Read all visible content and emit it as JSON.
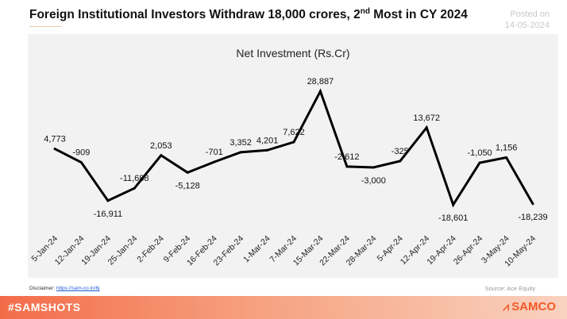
{
  "header": {
    "title_main": "Foreign Institutional Investors Withdraw 18,000 crores, 2",
    "title_sup": "nd",
    "title_end": " Most in CY 2024",
    "posted_label": "Posted on",
    "posted_date": "14-05-2024"
  },
  "chart_data": {
    "type": "line",
    "title": "Net Investment (Rs.Cr)",
    "categories": [
      "5-Jan-24",
      "12-Jan-24",
      "19-Jan-24",
      "25-Jan-24",
      "2-Feb-24",
      "9-Feb-24",
      "16-Feb-24",
      "23-Feb-24",
      "1-Mar-24",
      "7-Mar-24",
      "15-Mar-24",
      "22-Mar-24",
      "28-Mar-24",
      "5-Apr-24",
      "12-Apr-24",
      "19-Apr-24",
      "26-Apr-24",
      "3-May-24",
      "10-May-24"
    ],
    "values": [
      4773,
      -909,
      -16911,
      -11688,
      2053,
      -5128,
      -701,
      3352,
      4201,
      7622,
      28887,
      -2612,
      -3000,
      -325,
      13672,
      -18601,
      -1050,
      1156,
      -18239
    ],
    "data_labels": [
      "4,773",
      "-909",
      "-16,911",
      "-11,688",
      "2,053",
      "-5,128",
      "-701",
      "3,352",
      "4,201",
      "7,622",
      "28,887",
      "-2,612",
      "-3,000",
      "-325",
      "13,672",
      "-18,601",
      "-1,050",
      "1,156",
      "-18,239"
    ],
    "line_color": "#000000",
    "grid": false,
    "legend": "none"
  },
  "footer": {
    "disclaimer_label": "Disclaimer: ",
    "disclaimer_link": "https://sam-co.in/6j",
    "source": "Source:  Ace Equity",
    "hashtag": "#SAMSHOTS",
    "brand": "SAMCO",
    "brand_color": "#f25a2a"
  }
}
